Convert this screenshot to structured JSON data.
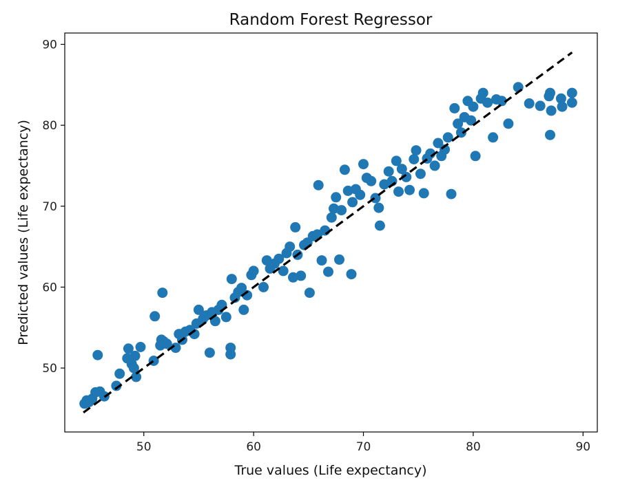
{
  "chart_data": {
    "type": "scatter",
    "title": "Random Forest Regressor",
    "xlabel": "True values (Life expectancy)",
    "ylabel": "Predicted values (Life expectancy)",
    "xlim": [
      42.8,
      91.3
    ],
    "ylim": [
      42.1,
      91.4
    ],
    "xticks": [
      50,
      60,
      70,
      80,
      90
    ],
    "yticks": [
      50,
      60,
      70,
      80,
      90
    ],
    "grid": false,
    "legend": "none",
    "point_color": "#1f77b4",
    "reference_line": {
      "style": "dashed",
      "color": "#000000",
      "from": [
        44.5,
        44.5
      ],
      "to": [
        89.0,
        89.0
      ]
    },
    "series": [
      {
        "points": [
          [
            44.6,
            45.6
          ],
          [
            44.8,
            46.0
          ],
          [
            45.0,
            45.8
          ],
          [
            45.3,
            46.2
          ],
          [
            45.6,
            47.0
          ],
          [
            45.8,
            51.6
          ],
          [
            46.0,
            47.1
          ],
          [
            46.4,
            46.5
          ],
          [
            47.5,
            47.8
          ],
          [
            47.8,
            49.3
          ],
          [
            48.5,
            51.2
          ],
          [
            48.6,
            52.4
          ],
          [
            48.9,
            50.5
          ],
          [
            49.1,
            50.0
          ],
          [
            49.2,
            51.5
          ],
          [
            49.3,
            48.9
          ],
          [
            49.7,
            52.6
          ],
          [
            50.9,
            50.9
          ],
          [
            51.0,
            56.4
          ],
          [
            51.5,
            52.8
          ],
          [
            51.6,
            53.5
          ],
          [
            51.7,
            59.3
          ],
          [
            52.1,
            53.0
          ],
          [
            51.8,
            53.3
          ],
          [
            52.9,
            52.5
          ],
          [
            53.2,
            54.2
          ],
          [
            53.5,
            53.5
          ],
          [
            53.8,
            54.5
          ],
          [
            54.2,
            54.7
          ],
          [
            54.6,
            54.2
          ],
          [
            54.8,
            55.5
          ],
          [
            55.0,
            57.2
          ],
          [
            55.4,
            56.1
          ],
          [
            55.7,
            56.5
          ],
          [
            56.0,
            51.9
          ],
          [
            56.2,
            56.9
          ],
          [
            56.5,
            55.8
          ],
          [
            56.8,
            57.2
          ],
          [
            57.1,
            57.8
          ],
          [
            57.5,
            56.3
          ],
          [
            57.9,
            51.7
          ],
          [
            57.9,
            52.5
          ],
          [
            58.0,
            61.0
          ],
          [
            58.3,
            58.7
          ],
          [
            58.6,
            59.4
          ],
          [
            58.9,
            59.9
          ],
          [
            59.1,
            57.2
          ],
          [
            59.4,
            59.0
          ],
          [
            59.8,
            61.5
          ],
          [
            60.0,
            62.0
          ],
          [
            60.9,
            60.0
          ],
          [
            61.2,
            63.3
          ],
          [
            61.5,
            62.3
          ],
          [
            61.9,
            62.9
          ],
          [
            62.3,
            63.5
          ],
          [
            62.7,
            62.0
          ],
          [
            63.0,
            64.2
          ],
          [
            63.3,
            65.0
          ],
          [
            63.6,
            61.2
          ],
          [
            63.8,
            67.4
          ],
          [
            64.0,
            64.0
          ],
          [
            64.3,
            61.4
          ],
          [
            64.6,
            65.2
          ],
          [
            64.9,
            65.5
          ],
          [
            65.1,
            59.3
          ],
          [
            65.4,
            66.3
          ],
          [
            65.8,
            66.5
          ],
          [
            65.9,
            72.6
          ],
          [
            66.2,
            63.3
          ],
          [
            66.5,
            67.0
          ],
          [
            66.8,
            61.9
          ],
          [
            67.1,
            68.6
          ],
          [
            67.3,
            69.7
          ],
          [
            67.5,
            71.1
          ],
          [
            67.8,
            63.4
          ],
          [
            68.0,
            69.5
          ],
          [
            68.3,
            74.5
          ],
          [
            68.6,
            71.9
          ],
          [
            68.9,
            61.6
          ],
          [
            69.0,
            70.5
          ],
          [
            69.3,
            72.1
          ],
          [
            69.7,
            71.4
          ],
          [
            70.0,
            75.2
          ],
          [
            70.3,
            73.5
          ],
          [
            70.7,
            73.1
          ],
          [
            71.1,
            71.0
          ],
          [
            71.4,
            69.8
          ],
          [
            71.5,
            67.6
          ],
          [
            71.9,
            72.7
          ],
          [
            72.3,
            74.3
          ],
          [
            72.6,
            73.1
          ],
          [
            73.0,
            75.6
          ],
          [
            73.2,
            71.8
          ],
          [
            73.5,
            74.6
          ],
          [
            73.9,
            73.6
          ],
          [
            74.2,
            72.0
          ],
          [
            74.6,
            75.8
          ],
          [
            74.8,
            76.9
          ],
          [
            75.2,
            74.0
          ],
          [
            75.5,
            71.6
          ],
          [
            75.8,
            75.9
          ],
          [
            76.1,
            76.5
          ],
          [
            76.5,
            75.0
          ],
          [
            76.8,
            77.8
          ],
          [
            77.1,
            76.2
          ],
          [
            77.4,
            77.0
          ],
          [
            77.7,
            78.5
          ],
          [
            78.0,
            71.5
          ],
          [
            78.3,
            82.1
          ],
          [
            78.6,
            80.2
          ],
          [
            78.9,
            79.1
          ],
          [
            79.2,
            81.0
          ],
          [
            79.5,
            83.0
          ],
          [
            79.8,
            80.6
          ],
          [
            80.0,
            82.3
          ],
          [
            80.2,
            76.2
          ],
          [
            80.7,
            83.3
          ],
          [
            80.9,
            84.0
          ],
          [
            81.3,
            82.8
          ],
          [
            81.8,
            78.5
          ],
          [
            82.1,
            83.2
          ],
          [
            82.6,
            83.0
          ],
          [
            83.2,
            80.2
          ],
          [
            84.1,
            84.7
          ],
          [
            85.1,
            82.7
          ],
          [
            86.1,
            82.4
          ],
          [
            86.9,
            83.6
          ],
          [
            87.0,
            84.0
          ],
          [
            87.0,
            78.8
          ],
          [
            87.1,
            81.8
          ],
          [
            88.0,
            83.3
          ],
          [
            88.1,
            82.3
          ],
          [
            89.0,
            84.0
          ],
          [
            89.0,
            82.8
          ]
        ]
      }
    ]
  }
}
